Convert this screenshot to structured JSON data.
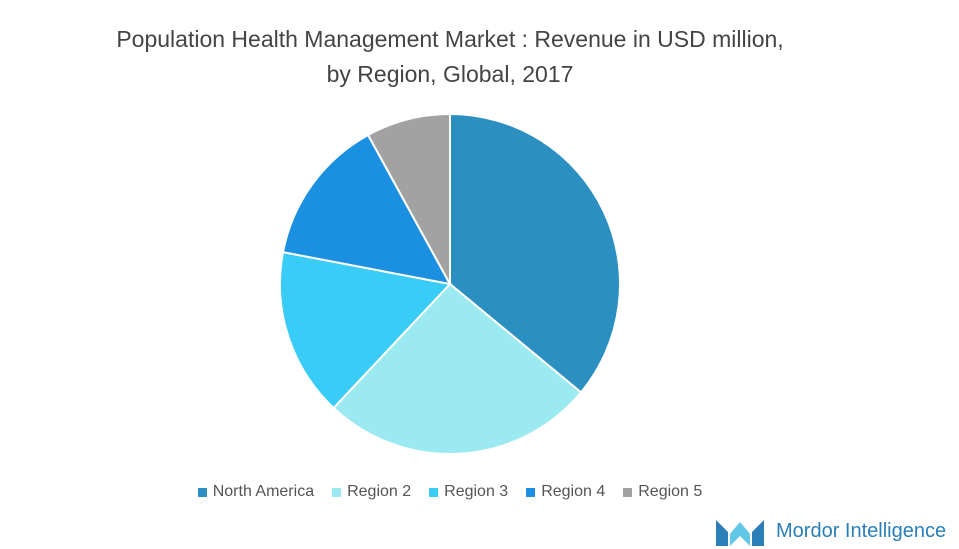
{
  "chart_data": {
    "type": "pie",
    "title": "Population Health Management Market : Revenue in USD million, by Region, Global, 2017",
    "categories": [
      "North America",
      "Region 2",
      "Region 3",
      "Region 4",
      "Region 5"
    ],
    "values": [
      36,
      26,
      16,
      14,
      8
    ],
    "colors": [
      "#2b8fc2",
      "#9beaf1",
      "#38ccf6",
      "#1c90e0",
      "#a2a2a2"
    ],
    "legend": "bottom"
  },
  "logo": {
    "text": "Mordor Intelligence"
  }
}
